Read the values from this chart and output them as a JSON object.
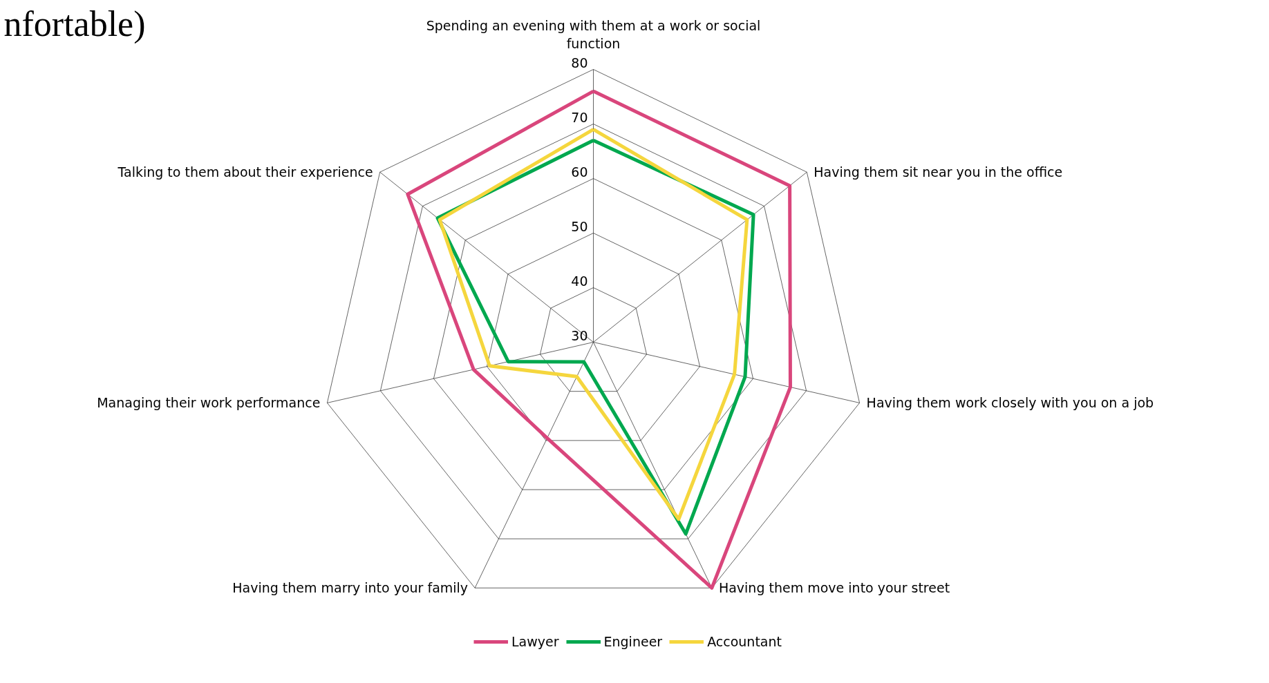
{
  "chart_data": {
    "type": "radar",
    "title": "nfortable)",
    "categories": [
      "Spending an evening with them at a work or social function",
      "Having them sit near you in the office",
      "Having them work closely with you on a job",
      "Having them move into your street",
      "Having them marry into your family",
      "Managing their work performance",
      "Talking to them about their experience"
    ],
    "series": [
      {
        "name": "Lawyer",
        "color": "#d9467c",
        "values": [
          76,
          76,
          67,
          80,
          49.5,
          52.5,
          73.5
        ]
      },
      {
        "name": "Engineer",
        "color": "#00a84f",
        "values": [
          67,
          67.5,
          58.5,
          69,
          34,
          46,
          66.5
        ]
      },
      {
        "name": "Accountant",
        "color": "#f5d63d",
        "values": [
          69,
          66,
          56.5,
          66,
          37,
          49.5,
          66
        ]
      }
    ],
    "ylim": [
      30,
      80
    ],
    "yticks": [
      30,
      40,
      50,
      60,
      70,
      80
    ],
    "legend": "bottom",
    "grid": true,
    "marker": "none",
    "line_style": "solid"
  }
}
